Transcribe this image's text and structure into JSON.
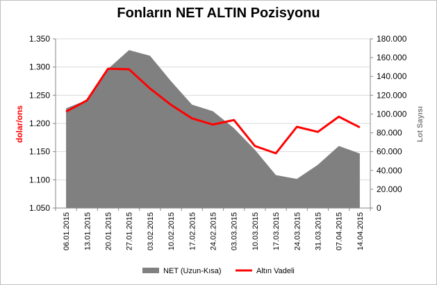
{
  "chart_data": {
    "type": "area",
    "title": "Fonların NET ALTIN Pozisyonu",
    "categories": [
      "06.01.2015",
      "13.01.2015",
      "20.01.2015",
      "27.01.2015",
      "03.02.2015",
      "10.02.2015",
      "17.02.2015",
      "24.02.2015",
      "03.03.2015",
      "10.03.2015",
      "17.03.2015",
      "24.03.2015",
      "31.03.2015",
      "07.04.2015",
      "14.04.2015"
    ],
    "series": [
      {
        "name": "NET (Uzun-Kısa)",
        "type": "area",
        "axis": "right",
        "color": "#808080",
        "values": [
          106000,
          115000,
          148000,
          168000,
          162000,
          135000,
          110000,
          103000,
          85000,
          62000,
          35000,
          31000,
          46000,
          66000,
          58000
        ]
      },
      {
        "name": "Altın Vadeli",
        "type": "line",
        "axis": "left",
        "color": "#ff0000",
        "values": [
          1.221,
          1.241,
          1.297,
          1.296,
          1.262,
          1.233,
          1.209,
          1.198,
          1.206,
          1.16,
          1.147,
          1.194,
          1.185,
          1.212,
          1.193
        ]
      }
    ],
    "ylabel_left": "dolar/ons",
    "ylabel_right": "Lot Sayısı",
    "ylim_left": [
      1.05,
      1.35
    ],
    "ylim_right": [
      0,
      180000
    ],
    "yticks_left": [
      "1.350",
      "1.300",
      "1.250",
      "1.200",
      "1.150",
      "1.100",
      "1.050"
    ],
    "yticks_right": [
      "180.000",
      "160.000",
      "140.000",
      "120.000",
      "100.000",
      "80.000",
      "60.000",
      "40.000",
      "20.000",
      "0"
    ],
    "legend_position": "bottom",
    "grid": true,
    "colors": {
      "area": "#808080",
      "line": "#ff0000",
      "grid": "#d9d9d9",
      "axis_title_left": "#ff0000",
      "axis_title_right": "#7f7f7f"
    }
  }
}
